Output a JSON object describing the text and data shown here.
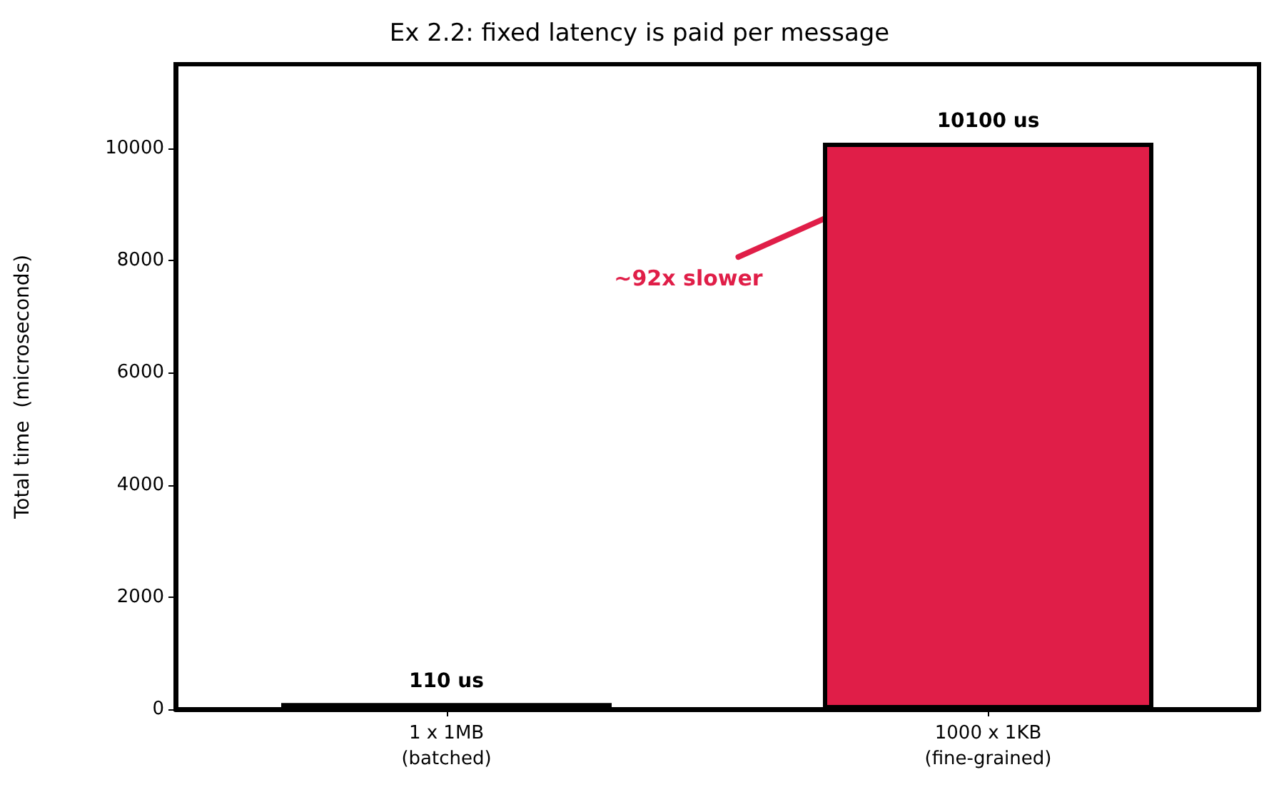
{
  "chart_data": {
    "type": "bar",
    "title": "Ex 2.2: fixed latency is paid per message",
    "ylabel": "Total time  (microseconds)",
    "categories": [
      "1 x 1MB\n(batched)",
      "1000 x 1KB\n(fine-grained)"
    ],
    "values": [
      110,
      10100
    ],
    "colors": [
      "#1f2a44",
      "#e01e48"
    ],
    "value_labels": [
      "110 us",
      "10100 us"
    ],
    "ylim": [
      0,
      11500
    ],
    "yticks": [
      0,
      2000,
      4000,
      6000,
      8000,
      10000
    ],
    "grid": false,
    "annotations": [
      {
        "text": "~92x slower",
        "x": "1000 x 1KB\n(fine-grained)",
        "y": 10100
      }
    ]
  }
}
